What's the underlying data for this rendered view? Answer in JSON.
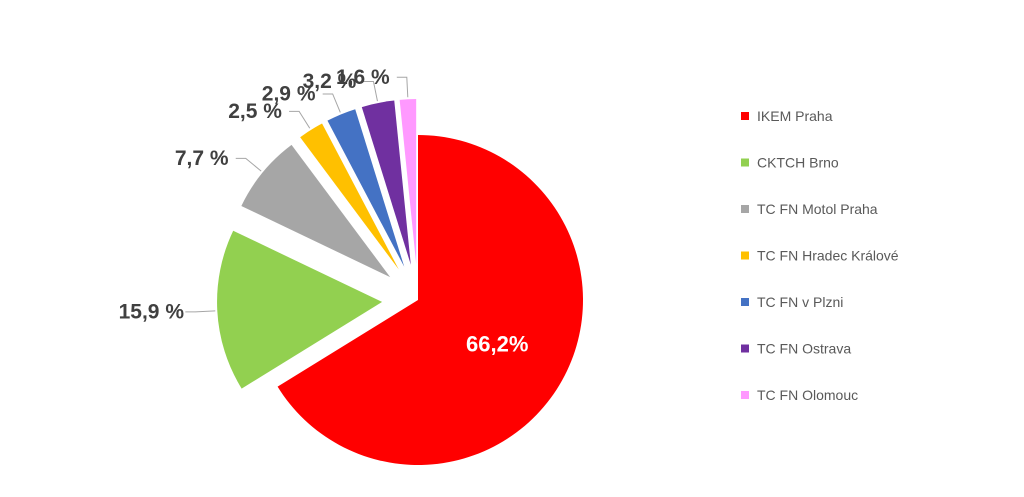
{
  "chart_data": {
    "type": "pie",
    "title": "",
    "legend_position": "right",
    "labels_shown": [
      "66,2%",
      "15,9 %",
      "7,7 %",
      "2,5 %",
      "2,9 %",
      "3,2 %",
      "1,6 %"
    ],
    "slices": [
      {
        "name": "IKEM Praha",
        "value": 66.2,
        "color": "#FF0000"
      },
      {
        "name": "CKTCH  Brno",
        "value": 15.9,
        "color": "#92D050"
      },
      {
        "name": "TC FN Motol Praha",
        "value": 7.7,
        "color": "#A6A6A6"
      },
      {
        "name": "TC FN Hradec Králové",
        "value": 2.5,
        "color": "#FFC000"
      },
      {
        "name": "TC FN v Plzni",
        "value": 2.9,
        "color": "#4472C4"
      },
      {
        "name": "TC FN Ostrava",
        "value": 3.2,
        "color": "#7030A0"
      },
      {
        "name": "TC FN Olomouc",
        "value": 1.6,
        "color": "#FF99FF"
      }
    ]
  }
}
